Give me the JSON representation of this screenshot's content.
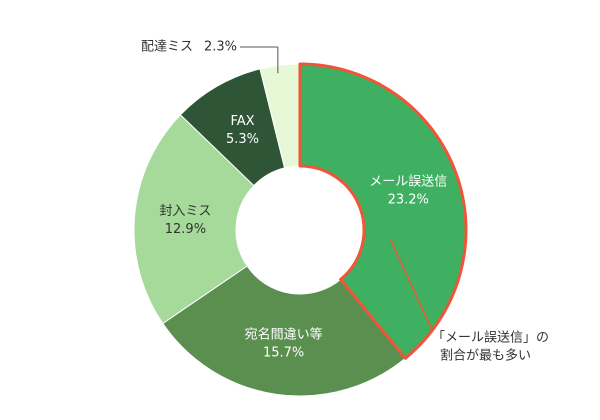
{
  "chart_data": {
    "type": "donut",
    "categories": [
      "メール誤送信",
      "宛名間違い等",
      "封入ミス",
      "FAX",
      "配達ミス"
    ],
    "values": [
      23.2,
      15.7,
      12.9,
      5.3,
      2.3
    ],
    "value_labels": [
      "23.2%",
      "15.7%",
      "12.9%",
      "5.3%",
      "2.3%"
    ],
    "colors": [
      "#3fb061",
      "#5b8f50",
      "#a6da9b",
      "#2e5636",
      "#e7f8d6"
    ],
    "highlight_index": 0,
    "highlight_color": "#f0553a",
    "annotation": [
      "「メール誤送信」の",
      "割合が最も多い"
    ]
  }
}
